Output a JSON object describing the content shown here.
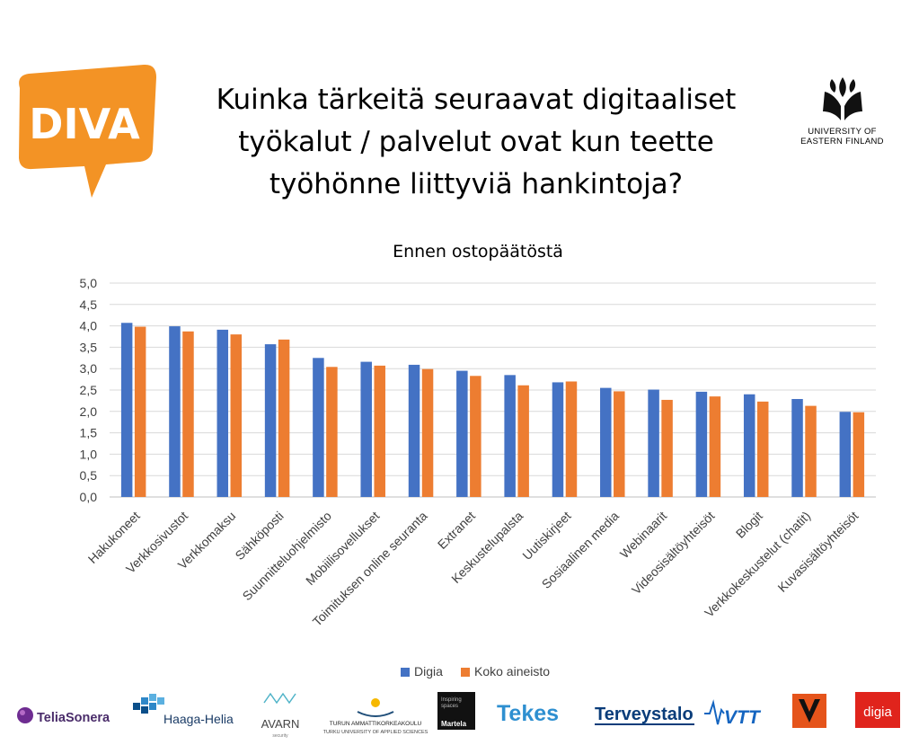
{
  "header": {
    "title_lines": [
      "Kuinka tärkeitä seuraavat digitaaliset",
      "työkalut / palvelut ovat kun teette",
      "työhönne liittyviä hankintoja?"
    ],
    "diva_logo_text": "DIVA",
    "uef_line1": "UNIVERSITY OF",
    "uef_line2": "EASTERN FINLAND"
  },
  "colors": {
    "series_digia": "#4472C4",
    "series_koko": "#ED7D31",
    "diva_orange": "#F39325",
    "gridline": "#D9D9D9"
  },
  "chart_data": {
    "type": "bar",
    "title": "Ennen ostopäätöstä",
    "xlabel": "",
    "ylabel": "",
    "ylim": [
      0,
      5
    ],
    "y_ticks": [
      "0,0",
      "0,5",
      "1,0",
      "1,5",
      "2,0",
      "2,5",
      "3,0",
      "3,5",
      "4,0",
      "4,5",
      "5,0"
    ],
    "grid": true,
    "legend_position": "bottom",
    "categories": [
      "Hakukoneet",
      "Verkkosivustot",
      "Verkkomaksu",
      "Sähköposti",
      "Suunnitteluohjelmisto",
      "Mobiilisovellukset",
      "Toimituksen online seuranta",
      "Extranet",
      "Keskustelupalsta",
      "Uutiskirjeet",
      "Sosiaalinen media",
      "Webinaarit",
      "Videosisältöyhteisöt",
      "Blogit",
      "Verkkokeskustelut (chatit)",
      "Kuvasisältöyhteisöt"
    ],
    "series": [
      {
        "name": "Digia",
        "values": [
          4.07,
          3.99,
          3.91,
          3.57,
          3.25,
          3.16,
          3.09,
          2.95,
          2.85,
          2.68,
          2.55,
          2.51,
          2.46,
          2.4,
          2.29,
          1.99
        ]
      },
      {
        "name": "Koko aineisto",
        "values": [
          3.98,
          3.87,
          3.8,
          3.68,
          3.04,
          3.07,
          2.99,
          2.83,
          2.61,
          2.7,
          2.47,
          2.27,
          2.35,
          2.23,
          2.13,
          1.98
        ]
      }
    ]
  },
  "footer": {
    "logos": [
      "TeliaSonera",
      "Haaga-Helia",
      "AVARN",
      "TURUN AMMATTIKORKEAKOULU",
      "Martela",
      "Tekes",
      "Terveystalo",
      "VTT",
      "digia"
    ],
    "avarn_sub": "security",
    "turku_sub": "TURKU UNIVERSITY OF APPLIED SCIENCES",
    "martela_tag1": "Inspiring",
    "martela_tag2": "spaces"
  }
}
